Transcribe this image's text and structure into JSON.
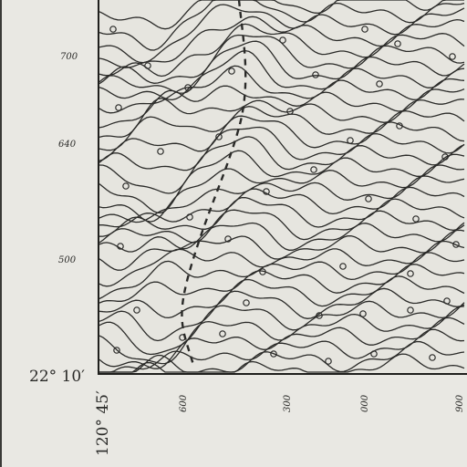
{
  "map": {
    "colors": {
      "paper": "#e9e8e3",
      "ink": "#2a2a28",
      "border": "#1f1f1d"
    },
    "corner_latitude": "22° 10′",
    "corner_longitude": "120° 45′",
    "left_margin_labels": [
      "700",
      "640",
      "500"
    ],
    "bottom_margin_labels": [
      "600",
      "300",
      "000",
      "900"
    ]
  }
}
